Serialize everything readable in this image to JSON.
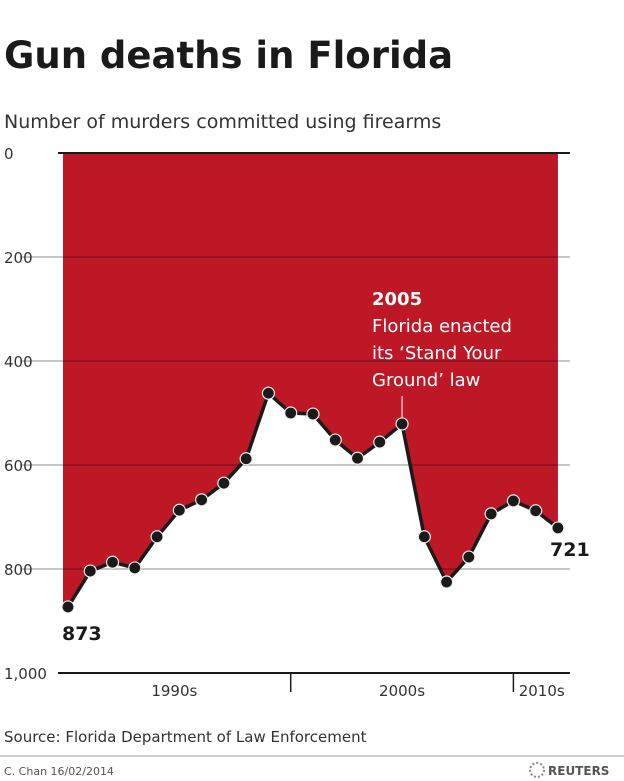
{
  "chart_data": {
    "type": "area",
    "title": "Gun deaths in Florida",
    "subtitle": "Number of murders committed using firearms",
    "y_inverted": true,
    "ylim": [
      0,
      1000
    ],
    "yticks": [
      "0",
      "200",
      "400",
      "600",
      "800",
      "1,000"
    ],
    "ytick_values": [
      0,
      200,
      400,
      600,
      800,
      1000
    ],
    "grid": true,
    "x_decade_labels": [
      "1990s",
      "2000s",
      "2010s"
    ],
    "x": [
      1990,
      1991,
      1992,
      1993,
      1994,
      1995,
      1996,
      1997,
      1998,
      1999,
      2000,
      2001,
      2002,
      2003,
      2004,
      2005,
      2006,
      2007,
      2008,
      2009,
      2010,
      2011,
      2012
    ],
    "values": [
      873,
      804,
      787,
      798,
      738,
      687,
      667,
      635,
      588,
      462,
      500,
      502,
      552,
      587,
      556,
      521,
      738,
      825,
      777,
      694,
      669,
      688,
      721
    ],
    "data_labels": {
      "first": "873",
      "last": "721"
    },
    "annotation": {
      "year": "2005",
      "lines": [
        "Florida enacted",
        "its ‘Stand Your",
        "Ground’ law"
      ]
    },
    "fill_color": "#be1826",
    "line_color": "#1a1a1a"
  },
  "footer": {
    "source": "Source: Florida Department of Law Enforcement",
    "credit": "C. Chan  16/02/2014",
    "logo": "REUTERS"
  }
}
